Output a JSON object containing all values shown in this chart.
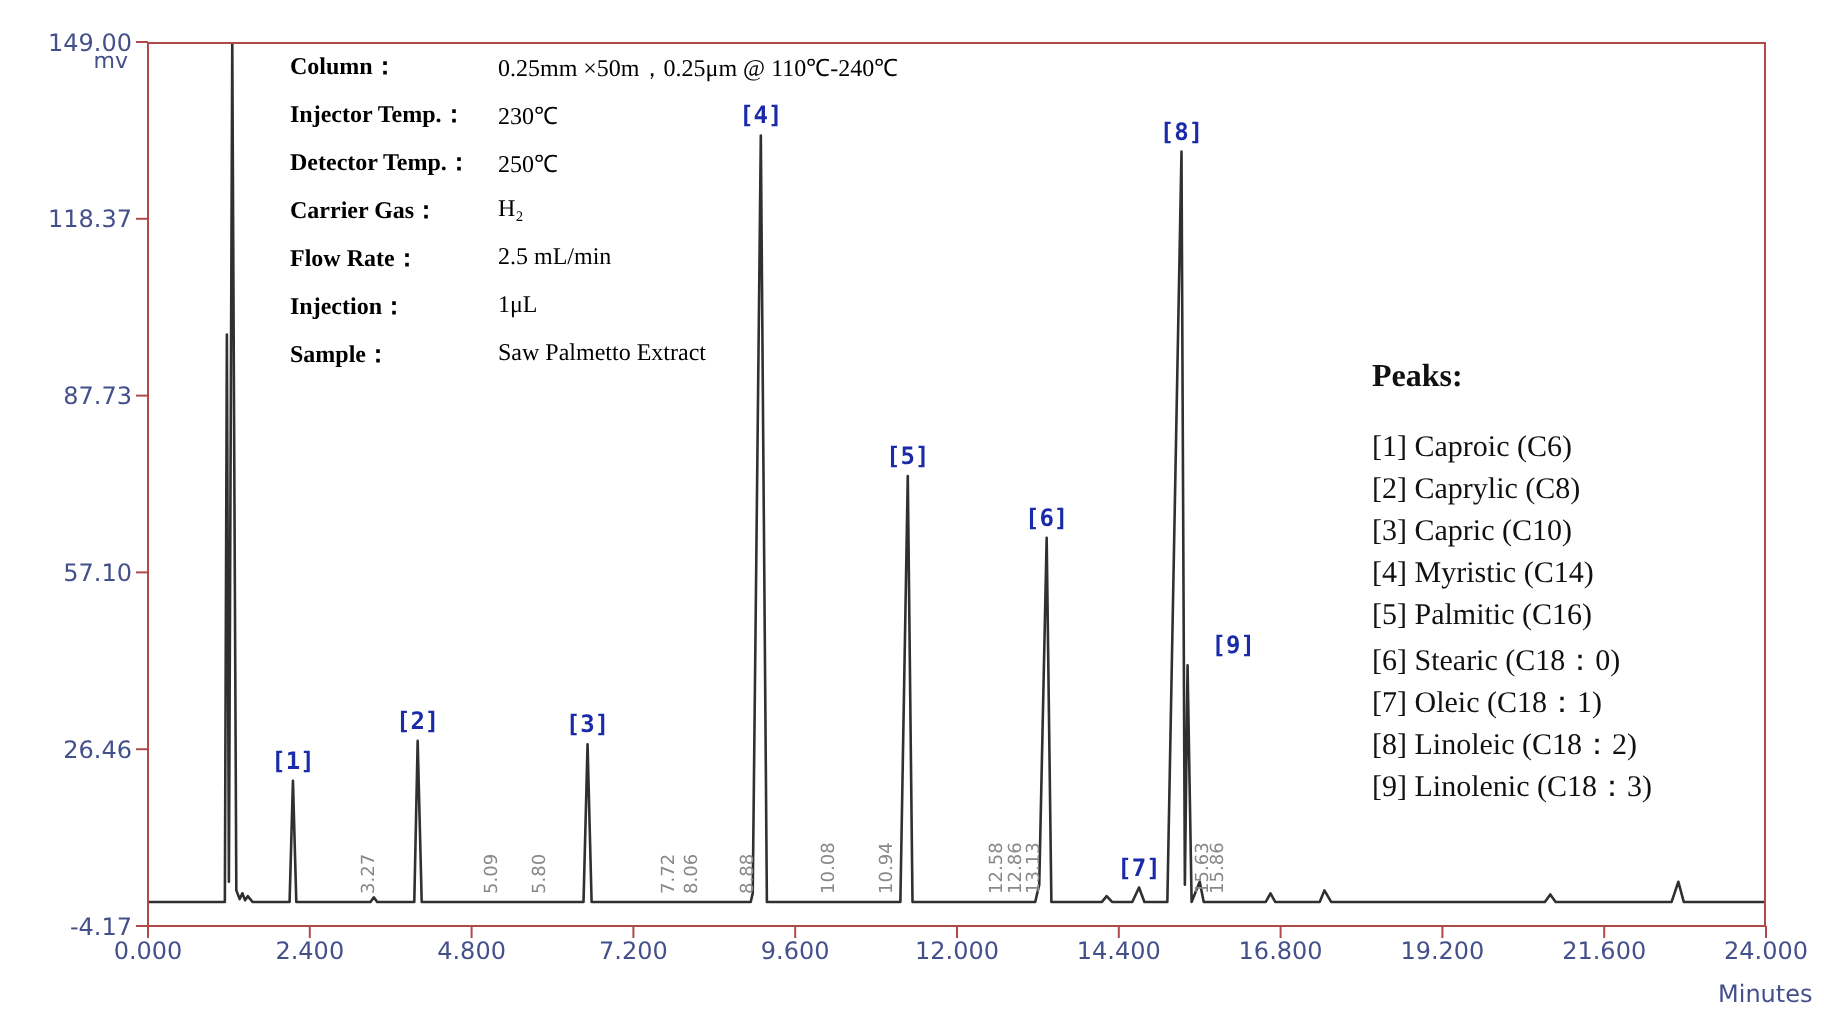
{
  "chart_data": {
    "type": "line",
    "xlabel": "Minutes",
    "ylabel": "mv",
    "x": [
      0,
      1.14,
      1.17,
      1.2,
      1.25,
      1.31,
      1.36,
      1.4,
      1.44,
      1.48,
      1.55,
      2.1,
      2.15,
      2.2,
      3.3,
      3.35,
      3.4,
      3.95,
      4.0,
      4.06,
      6.46,
      6.52,
      6.58,
      8.94,
      8.97,
      9.09,
      9.18,
      11.16,
      11.27,
      11.34,
      13.16,
      13.22,
      13.33,
      13.4,
      14.15,
      14.22,
      14.3,
      14.6,
      14.7,
      14.78,
      15.12,
      15.33,
      15.38,
      15.42,
      15.48,
      15.6,
      15.66,
      16.58,
      16.65,
      16.72,
      17.38,
      17.45,
      17.55,
      20.72,
      20.8,
      20.88,
      22.6,
      22.7,
      22.78,
      24
    ],
    "series": [
      {
        "color": "#303030",
        "values": [
          0,
          0,
          98.3,
          3.5,
          149,
          2,
          0.5,
          1.5,
          0.3,
          1,
          0,
          0,
          21.0,
          0,
          0,
          0.8,
          0,
          0,
          27.9,
          0,
          0,
          27.3,
          0,
          0,
          1.5,
          132.8,
          0,
          0,
          73.8,
          0,
          0,
          3,
          63.1,
          0,
          0,
          1,
          0,
          0,
          2.5,
          0,
          0,
          130.0,
          3,
          41.0,
          0,
          3.5,
          0,
          0,
          1.5,
          0,
          0,
          2,
          0,
          0,
          1.3,
          0,
          0,
          3.5,
          0,
          0
        ]
      }
    ],
    "xlim": [
      0,
      24
    ],
    "xticks": [
      {
        "value": 0,
        "label": "0.000"
      },
      {
        "value": 2.4,
        "label": "2.400"
      },
      {
        "value": 4.8,
        "label": "4.800"
      },
      {
        "value": 7.2,
        "label": "7.200"
      },
      {
        "value": 9.6,
        "label": "9.600"
      },
      {
        "value": 12,
        "label": "12.000"
      },
      {
        "value": 14.4,
        "label": "14.400"
      },
      {
        "value": 16.8,
        "label": "16.800"
      },
      {
        "value": 19.2,
        "label": "19.200"
      },
      {
        "value": 21.6,
        "label": "21.600"
      },
      {
        "value": 24,
        "label": "24.000"
      }
    ],
    "ylim": [
      -4.17,
      149
    ],
    "yticks": [
      {
        "value": -4.17,
        "label": "-4.17"
      },
      {
        "value": 26.46,
        "label": "26.46"
      },
      {
        "value": 57.1,
        "label": "57.10"
      },
      {
        "value": 87.73,
        "label": "87.73"
      },
      {
        "value": 118.37,
        "label": "118.37"
      },
      {
        "value": 149,
        "label": "149.00"
      }
    ],
    "grid": false,
    "legend": false,
    "annotations": [
      "Column：",
      "0.25mm ×50m，0.25μm   @ 110℃-240℃",
      "Injector Temp.：",
      "230℃",
      "Detector Temp.：",
      "250℃",
      "Carrier Gas：",
      "H₂",
      "Flow Rate：",
      "2.5 mL/min",
      "Injection：",
      "1μL",
      "Sample：",
      "Saw Palmetto Extract",
      "Peaks:",
      "[1] Caproic (C6)",
      "[2] Caprylic (C8)",
      "[3] Capric (C10)",
      "[4] Myristic (C14)",
      "[5] Palmitic (C16)",
      "[6] Stearic (C18：0)",
      "[7] Oleic (C18：1)",
      "[8] Linoleic (C18：2)",
      "[9] Linolenic (C18：3)",
      {
        "text": "[1]",
        "x": 2.15,
        "y": 21.0
      },
      {
        "text": "[2]",
        "x": 4.0,
        "y": 27.9
      },
      {
        "text": "[3]",
        "x": 6.52,
        "y": 27.3
      },
      {
        "text": "[4]",
        "x": 9.09,
        "y": 132.8
      },
      {
        "text": "[5]",
        "x": 11.27,
        "y": 73.8
      },
      {
        "text": "[6]",
        "x": 13.33,
        "y": 63.1
      },
      {
        "text": "[7]",
        "x": 14.7,
        "y": 2.5
      },
      {
        "text": "[8]",
        "x": 15.33,
        "y": 130.0
      },
      {
        "text": "[9]",
        "x": 15.42,
        "y": 41.0
      },
      {
        "text": "3.27",
        "x": 3.27,
        "y": 0
      },
      {
        "text": "5.09",
        "x": 5.09,
        "y": 0
      },
      {
        "text": "5.80",
        "x": 5.8,
        "y": 0
      },
      {
        "text": "7.72",
        "x": 7.72,
        "y": 0
      },
      {
        "text": "8.06",
        "x": 8.06,
        "y": 0
      },
      {
        "text": "8.88",
        "x": 8.88,
        "y": 0
      },
      {
        "text": "10.08",
        "x": 10.08,
        "y": 0
      },
      {
        "text": "10.94",
        "x": 10.94,
        "y": 0
      },
      {
        "text": "12.58",
        "x": 12.58,
        "y": 0
      },
      {
        "text": "12.86",
        "x": 12.86,
        "y": 0
      },
      {
        "text": "13.13",
        "x": 13.13,
        "y": 0
      },
      {
        "text": "15.63",
        "x": 15.63,
        "y": 0
      },
      {
        "text": "15.86",
        "x": 15.86,
        "y": 0
      }
    ]
  }
}
